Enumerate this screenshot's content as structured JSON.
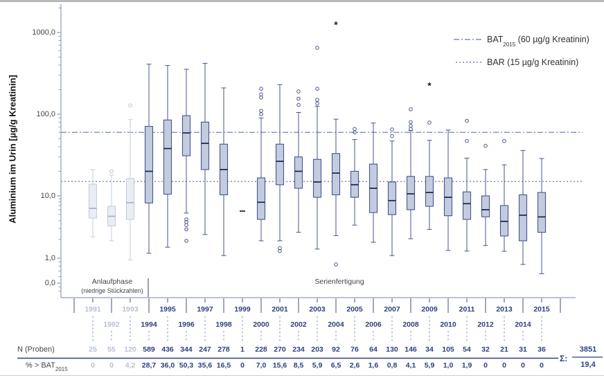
{
  "colors": {
    "dark_text": "#2e3f7f",
    "light_text": "#b6bfd4",
    "box_dark_fill": "#c3ccdf",
    "box_dark_stroke": "#45558b",
    "median_dark": "#1e2b57",
    "box_light_fill": "#eaedf4",
    "box_light_stroke": "#c5cddf",
    "median_light": "#a9b3cc",
    "axis": "#909bc0",
    "ref_bat": "#6375b8",
    "ref_bar": "#5568ae",
    "tick_dark": "#3f4f86",
    "leader": "#8794c0",
    "asterisk": "#26262a"
  },
  "y_axis": {
    "title": "Aluminium im Urin [µg/g Kreatinin]"
  },
  "legend": {
    "bat_pre": "BAT",
    "bat_sub": "2015",
    "bat_post": " (60 µg/g Kreatinin)",
    "bar_label": "BAR (15 µg/g Kreatinin)"
  },
  "phases": {
    "anlauf_line1": "Anlaufphase",
    "anlauf_line2": "(niedrige Stückzahlen)",
    "serien": "Serienfertigung"
  },
  "table": {
    "row1_label": "N (Proben)",
    "row2_label_pre": "% > BAT",
    "row2_label_sub": "2015",
    "sum_label": "Σ:",
    "sum_n": "3851",
    "sum_pct": "19,4"
  },
  "chart_data": {
    "type": "boxplot",
    "title": "",
    "ylabel": "Aluminium im Urin [µg/g Kreatinin]",
    "y_scale": "log-like with 0 baseline",
    "y_tick_labels": [
      {
        "label": "1000,0",
        "value": 1000
      },
      {
        "label": "100,0",
        "value": 100
      },
      {
        "label": "10,0",
        "value": 10
      },
      {
        "label": "1,0",
        "value": 1
      },
      {
        "label": "0,0",
        "value": 0.5
      }
    ],
    "reference_lines": [
      {
        "name": "BAT2015",
        "value": 60,
        "style": "dashdot"
      },
      {
        "name": "BAR",
        "value": 15,
        "style": "dotted"
      }
    ],
    "years": [
      {
        "year": 1991,
        "phase": "light",
        "n": "25",
        "pct": "0",
        "low": 2.2,
        "q1": 4.4,
        "median": 6.3,
        "q3": 13.9,
        "high": 21,
        "out_hi": [],
        "out_lo": [],
        "ext_hi": []
      },
      {
        "year": 1992,
        "phase": "light",
        "n": "55",
        "pct": "0",
        "low": 1.9,
        "q1": 3.3,
        "median": 4.7,
        "q3": 6.8,
        "high": 18,
        "out_hi": [
          20
        ],
        "out_lo": [],
        "ext_hi": []
      },
      {
        "year": 1993,
        "phase": "light",
        "n": "120",
        "pct": "4,2",
        "low": 0.95,
        "q1": 4.2,
        "median": 7.8,
        "q3": 16.3,
        "high": 86,
        "out_hi": [
          128
        ],
        "out_lo": [],
        "ext_hi": []
      },
      {
        "year": 1994,
        "phase": "dark",
        "n": "589",
        "pct": "28,7",
        "low": 1.2,
        "q1": 7.7,
        "median": 20,
        "q3": 71,
        "high": 410,
        "out_hi": [],
        "out_lo": [],
        "ext_hi": []
      },
      {
        "year": 1995,
        "phase": "dark",
        "n": "436",
        "pct": "36,0",
        "low": 1.5,
        "q1": 10.5,
        "median": 38,
        "q3": 85,
        "high": 395,
        "out_hi": [],
        "out_lo": [],
        "ext_hi": []
      },
      {
        "year": 1996,
        "phase": "dark",
        "n": "344",
        "pct": "50,3",
        "low": 5.3,
        "q1": 31,
        "median": 59,
        "q3": 96,
        "high": 355,
        "out_hi": [],
        "out_lo": [
          4.2,
          3.8,
          3.4,
          2.9,
          1.9
        ],
        "ext_hi": []
      },
      {
        "year": 1997,
        "phase": "dark",
        "n": "247",
        "pct": "35,6",
        "low": 2.4,
        "q1": 21,
        "median": 44,
        "q3": 80,
        "high": 420,
        "out_hi": [],
        "out_lo": [],
        "ext_hi": []
      },
      {
        "year": 1998,
        "phase": "dark",
        "n": "278",
        "pct": "16,5",
        "low": 1.1,
        "q1": 10.3,
        "median": 21,
        "q3": 43,
        "high": 210,
        "out_hi": [],
        "out_lo": [],
        "ext_hi": []
      },
      {
        "year": 1999,
        "phase": "dark",
        "n": "1",
        "pct": "0",
        "single": 5.7,
        "out_hi": [],
        "out_lo": [],
        "ext_hi": []
      },
      {
        "year": 2000,
        "phase": "dark",
        "n": "228",
        "pct": "7,0",
        "low": 1.9,
        "q1": 4.2,
        "median": 7.9,
        "q3": 16.6,
        "high": 90,
        "out_hi": [
          205,
          175,
          160,
          110,
          100
        ],
        "out_lo": [],
        "ext_hi": []
      },
      {
        "year": 2001,
        "phase": "dark",
        "n": "270",
        "pct": "15,6",
        "low": 1.9,
        "q1": 13.7,
        "median": 26.5,
        "q3": 43,
        "high": 230,
        "out_hi": [],
        "out_lo": [
          1.45,
          1.3
        ],
        "ext_hi": []
      },
      {
        "year": 2002,
        "phase": "dark",
        "n": "234",
        "pct": "8,5",
        "low": 2.6,
        "q1": 12.4,
        "median": 20,
        "q3": 30,
        "high": 105,
        "out_hi": [
          190,
          155,
          130
        ],
        "out_lo": [],
        "ext_hi": []
      },
      {
        "year": 2003,
        "phase": "dark",
        "n": "203",
        "pct": "5,9",
        "low": 1.4,
        "q1": 9.5,
        "median": 14.8,
        "q3": 28,
        "high": 125,
        "out_hi": [
          650,
          205,
          150,
          135
        ],
        "out_lo": [],
        "ext_hi": []
      },
      {
        "year": 2004,
        "phase": "dark",
        "n": "92",
        "pct": "6,5",
        "low": 2.3,
        "q1": 10.3,
        "median": 19,
        "q3": 33,
        "high": 87,
        "out_hi": [],
        "out_lo": [
          0.84
        ],
        "ext_hi": [
          1250
        ]
      },
      {
        "year": 2005,
        "phase": "dark",
        "n": "76",
        "pct": "2,6",
        "low": 3.4,
        "q1": 9.5,
        "median": 13.7,
        "q3": 20,
        "high": 49,
        "out_hi": [
          66,
          60
        ],
        "out_lo": [],
        "ext_hi": []
      },
      {
        "year": 2006,
        "phase": "dark",
        "n": "64",
        "pct": "1,6",
        "low": 1.8,
        "q1": 5.4,
        "median": 12.4,
        "q3": 24.5,
        "high": 78,
        "out_hi": [],
        "out_lo": [],
        "ext_hi": []
      },
      {
        "year": 2007,
        "phase": "dark",
        "n": "130",
        "pct": "0,8",
        "low": 1.1,
        "q1": 5.0,
        "median": 8.4,
        "q3": 14.8,
        "high": 47,
        "out_hi": [
          65,
          54
        ],
        "out_lo": [],
        "ext_hi": []
      },
      {
        "year": 2008,
        "phase": "dark",
        "n": "146",
        "pct": "4,1",
        "low": 2.05,
        "q1": 6.0,
        "median": 10.6,
        "q3": 17.3,
        "high": 63,
        "out_hi": [
          115,
          80,
          72,
          66
        ],
        "out_lo": [],
        "ext_hi": []
      },
      {
        "year": 2009,
        "phase": "dark",
        "n": "34",
        "pct": "5,9",
        "low": 2.9,
        "q1": 6.8,
        "median": 11,
        "q3": 17.3,
        "high": 48,
        "out_hi": [
          79
        ],
        "out_lo": [],
        "ext_hi": [
          225
        ]
      },
      {
        "year": 2010,
        "phase": "dark",
        "n": "105",
        "pct": "1,0",
        "low": 1.33,
        "q1": 4.8,
        "median": 9.5,
        "q3": 16.6,
        "high": 64,
        "out_hi": [],
        "out_lo": [],
        "ext_hi": []
      },
      {
        "year": 2011,
        "phase": "dark",
        "n": "54",
        "pct": "1,9",
        "low": 1.3,
        "q1": 4.2,
        "median": 7.5,
        "q3": 11.2,
        "high": 29,
        "out_hi": [
          83,
          47
        ],
        "out_lo": [],
        "ext_hi": []
      },
      {
        "year": 2012,
        "phase": "dark",
        "n": "32",
        "pct": "0",
        "low": 1.6,
        "q1": 4.6,
        "median": 6.0,
        "q3": 10.0,
        "high": 21,
        "out_hi": [
          41
        ],
        "out_lo": [],
        "ext_hi": []
      },
      {
        "year": 2013,
        "phase": "dark",
        "n": "21",
        "pct": "0",
        "low": 1.29,
        "q1": 2.27,
        "median": 3.9,
        "q3": 7.0,
        "high": 24,
        "out_hi": [
          47
        ],
        "out_lo": [],
        "ext_hi": []
      },
      {
        "year": 2014,
        "phase": "dark",
        "n": "31",
        "pct": "0",
        "low": 0.84,
        "q1": 1.9,
        "median": 4.9,
        "q3": 10.3,
        "high": 36,
        "out_hi": [],
        "out_lo": [],
        "ext_hi": []
      },
      {
        "year": 2015,
        "phase": "dark",
        "n": "36",
        "pct": "0",
        "low": 0.65,
        "q1": 2.6,
        "median": 4.6,
        "q3": 11,
        "high": 28.7,
        "out_hi": [],
        "out_lo": [],
        "ext_hi": []
      }
    ],
    "totals": {
      "n_sum": 3851,
      "pct_overall": 19.4
    }
  }
}
